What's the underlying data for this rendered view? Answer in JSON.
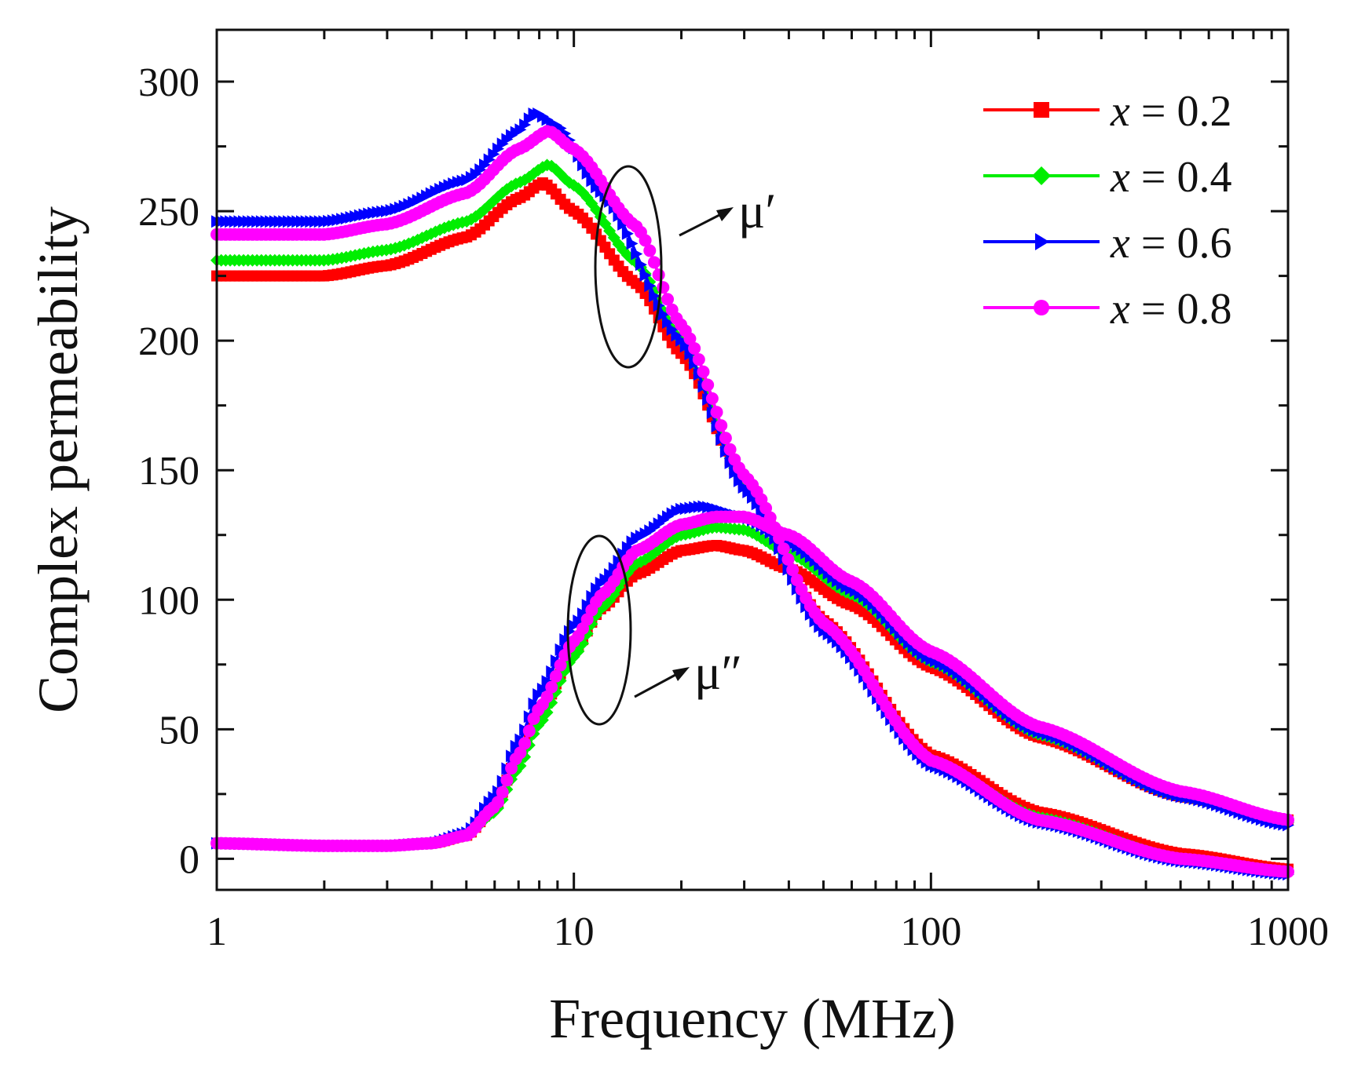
{
  "chart_data": {
    "type": "line",
    "xlabel": "Frequency (MHz)",
    "ylabel": "Complex permeability",
    "xscale": "log",
    "xlim": [
      1,
      1000
    ],
    "ylim": [
      -12,
      320
    ],
    "x_ticks": [
      1,
      10,
      100,
      1000
    ],
    "x_tick_labels": [
      "1",
      "10",
      "100",
      "1000"
    ],
    "y_ticks": [
      0,
      50,
      100,
      150,
      200,
      250,
      300
    ],
    "y_tick_labels": [
      "0",
      "50",
      "100",
      "150",
      "200",
      "250",
      "300"
    ],
    "legend_position": "top-right",
    "annotations": [
      {
        "label": "μ′",
        "target": "real part (μ′) curves"
      },
      {
        "label": "μ″",
        "target": "imaginary part (μ″) curves"
      }
    ],
    "series": [
      {
        "name": "x = 0.2",
        "var": "x",
        "value_label": " = 0.2",
        "color": "#ff0000",
        "marker": "square",
        "mu_real": [
          [
            1,
            225
          ],
          [
            2,
            225
          ],
          [
            3,
            229
          ],
          [
            5,
            240
          ],
          [
            7,
            255
          ],
          [
            8.2,
            261
          ],
          [
            10,
            250
          ],
          [
            15,
            222
          ],
          [
            20,
            195
          ],
          [
            30,
            145
          ],
          [
            50,
            92
          ],
          [
            100,
            40
          ],
          [
            200,
            18
          ],
          [
            500,
            2
          ],
          [
            1000,
            -4
          ]
        ],
        "mu_imag": [
          [
            1,
            6
          ],
          [
            2,
            5
          ],
          [
            3,
            5
          ],
          [
            4,
            6
          ],
          [
            5,
            9
          ],
          [
            6,
            20
          ],
          [
            7,
            40
          ],
          [
            8,
            56
          ],
          [
            10,
            80
          ],
          [
            12,
            97
          ],
          [
            15,
            110
          ],
          [
            20,
            119
          ],
          [
            25,
            121
          ],
          [
            30,
            119
          ],
          [
            40,
            112
          ],
          [
            60,
            98
          ],
          [
            100,
            74
          ],
          [
            200,
            47
          ],
          [
            500,
            24
          ],
          [
            1000,
            15
          ]
        ]
      },
      {
        "name": "x = 0.4",
        "var": "x",
        "value_label": " = 0.4",
        "color": "#00ee00",
        "marker": "diamond",
        "mu_real": [
          [
            1,
            231
          ],
          [
            2,
            231
          ],
          [
            3,
            235
          ],
          [
            5,
            246
          ],
          [
            7,
            261
          ],
          [
            8.5,
            268
          ],
          [
            10,
            260
          ],
          [
            15,
            230
          ],
          [
            20,
            200
          ],
          [
            30,
            145
          ],
          [
            50,
            90
          ],
          [
            100,
            38
          ],
          [
            200,
            16
          ],
          [
            500,
            0
          ],
          [
            1000,
            -5
          ]
        ],
        "mu_imag": [
          [
            1,
            6
          ],
          [
            2,
            5
          ],
          [
            3,
            5
          ],
          [
            4,
            6
          ],
          [
            5,
            9
          ],
          [
            6,
            18
          ],
          [
            7,
            35
          ],
          [
            8,
            52
          ],
          [
            10,
            78
          ],
          [
            12,
            97
          ],
          [
            15,
            114
          ],
          [
            20,
            125
          ],
          [
            25,
            128
          ],
          [
            30,
            127
          ],
          [
            40,
            118
          ],
          [
            60,
            102
          ],
          [
            100,
            76
          ],
          [
            200,
            48
          ],
          [
            500,
            24
          ],
          [
            1000,
            14
          ]
        ]
      },
      {
        "name": "x = 0.6",
        "var": "x",
        "value_label": " = 0.6",
        "color": "#0000ff",
        "marker": "triangle-right",
        "mu_real": [
          [
            1,
            246
          ],
          [
            2,
            246
          ],
          [
            3,
            250
          ],
          [
            5,
            262
          ],
          [
            7,
            281
          ],
          [
            7.8,
            288
          ],
          [
            9,
            283
          ],
          [
            12,
            257
          ],
          [
            20,
            200
          ],
          [
            30,
            143
          ],
          [
            50,
            88
          ],
          [
            100,
            36
          ],
          [
            200,
            14
          ],
          [
            500,
            -1
          ],
          [
            1000,
            -6
          ]
        ],
        "mu_imag": [
          [
            1,
            6
          ],
          [
            2,
            5
          ],
          [
            3,
            5
          ],
          [
            4,
            6
          ],
          [
            5,
            10
          ],
          [
            6,
            24
          ],
          [
            7,
            45
          ],
          [
            8,
            64
          ],
          [
            10,
            90
          ],
          [
            12,
            107
          ],
          [
            15,
            124
          ],
          [
            20,
            135
          ],
          [
            23,
            136
          ],
          [
            30,
            132
          ],
          [
            40,
            122
          ],
          [
            60,
            104
          ],
          [
            100,
            77
          ],
          [
            200,
            49
          ],
          [
            500,
            24
          ],
          [
            1000,
            13
          ]
        ]
      },
      {
        "name": "x = 0.8",
        "var": "x",
        "value_label": " = 0.8",
        "color": "#ff00ff",
        "marker": "circle",
        "mu_real": [
          [
            1,
            241
          ],
          [
            2,
            241
          ],
          [
            3,
            245
          ],
          [
            5,
            257
          ],
          [
            7,
            274
          ],
          [
            8.5,
            281
          ],
          [
            10,
            274
          ],
          [
            15,
            244
          ],
          [
            20,
            206
          ],
          [
            30,
            148
          ],
          [
            50,
            91
          ],
          [
            100,
            38
          ],
          [
            200,
            15
          ],
          [
            500,
            0
          ],
          [
            1000,
            -5
          ]
        ],
        "mu_imag": [
          [
            1,
            6
          ],
          [
            2,
            5
          ],
          [
            3,
            5
          ],
          [
            4,
            6
          ],
          [
            5,
            9
          ],
          [
            6,
            20
          ],
          [
            7,
            40
          ],
          [
            8,
            58
          ],
          [
            10,
            84
          ],
          [
            12,
            102
          ],
          [
            15,
            119
          ],
          [
            20,
            129
          ],
          [
            25,
            132
          ],
          [
            30,
            132
          ],
          [
            40,
            125
          ],
          [
            60,
            107
          ],
          [
            100,
            80
          ],
          [
            200,
            51
          ],
          [
            500,
            26
          ],
          [
            1000,
            15
          ]
        ]
      }
    ]
  }
}
